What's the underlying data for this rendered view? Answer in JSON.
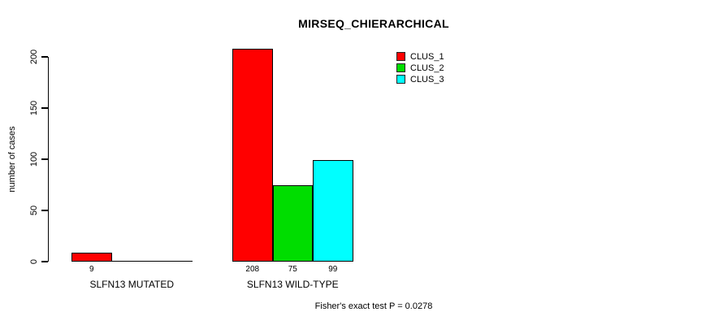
{
  "chart_data": {
    "type": "bar",
    "title": "MIRSEQ_CHIERARCHICAL",
    "ylabel": "number of cases",
    "xlabel": "",
    "yticks": [
      0,
      50,
      100,
      150,
      200
    ],
    "ylim": [
      0,
      200
    ],
    "grid": false,
    "legend_position": "top-right",
    "categories": [
      "SLFN13 MUTATED",
      "SLFN13 WILD-TYPE"
    ],
    "series": [
      {
        "name": "CLUS_1",
        "color": "#ff0000",
        "values": [
          9,
          208
        ]
      },
      {
        "name": "CLUS_2",
        "color": "#00dd00",
        "values": [
          0,
          75
        ]
      },
      {
        "name": "CLUS_3",
        "color": "#00ffff",
        "values": [
          0,
          99
        ]
      }
    ],
    "bar_value_labels_shown": [
      "9",
      "208",
      "75",
      "99"
    ],
    "footer": "Fisher's exact test P = 0.0278"
  },
  "colors": {
    "background": "#ffffff",
    "axis": "#000000",
    "text": "#000000",
    "clus_1": "#ff0000",
    "clus_2": "#00dd00",
    "clus_3": "#00ffff"
  }
}
